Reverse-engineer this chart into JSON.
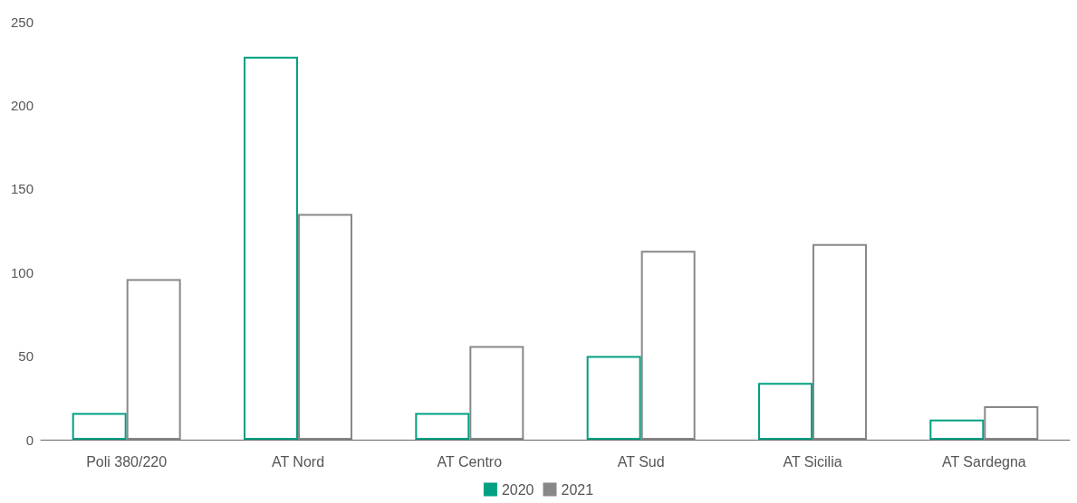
{
  "chart_data": {
    "type": "bar",
    "categories": [
      "Poli 380/220",
      "AT Nord",
      "AT Centro",
      "AT Sud",
      "AT Sicilia",
      "AT Sardegna"
    ],
    "series": [
      {
        "name": "2020",
        "color": "#00a082",
        "values": [
          16,
          229,
          16,
          50,
          34,
          12
        ]
      },
      {
        "name": "2021",
        "color": "#888888",
        "values": [
          96,
          135,
          56,
          113,
          117,
          20
        ]
      }
    ],
    "ylim": [
      0,
      250
    ],
    "yticks": [
      0,
      50,
      100,
      150,
      200,
      250
    ],
    "grid": false,
    "legend": "bottom"
  }
}
